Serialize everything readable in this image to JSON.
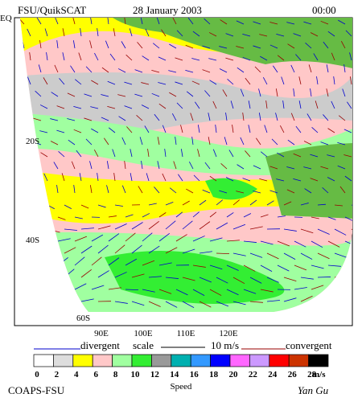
{
  "header": {
    "title": "FSU/QuikSCAT",
    "date": "28 January 2003",
    "time": "00:00"
  },
  "map": {
    "lat_labels": [
      "EQ",
      "20S",
      "40S",
      "60S"
    ],
    "lon_labels": [
      "90E",
      "100E",
      "110E",
      "120E"
    ]
  },
  "legend": {
    "divergent": "divergent",
    "scale": "scale",
    "scale_value": "10 m/s",
    "convergent": "convergent",
    "divergent_color": "#0000cc",
    "convergent_color": "#990000"
  },
  "colorbar": {
    "title": "Speed",
    "unit": "m/s",
    "labels": [
      "0",
      "2",
      "4",
      "6",
      "8",
      "10",
      "12",
      "14",
      "16",
      "18",
      "20",
      "22",
      "24",
      "26",
      "28"
    ],
    "colors": [
      "#ffffff",
      "#dddddd",
      "#ffff00",
      "#ffc8c8",
      "#a0ffa0",
      "#33ee33",
      "#999999",
      "#00b0b0",
      "#3399ff",
      "#0000ff",
      "#ff66ff",
      "#cc99ff",
      "#ff0000",
      "#cc3300",
      "#000000"
    ]
  },
  "footer": {
    "left": "COAPS-FSU",
    "right": "Yan Gu"
  }
}
